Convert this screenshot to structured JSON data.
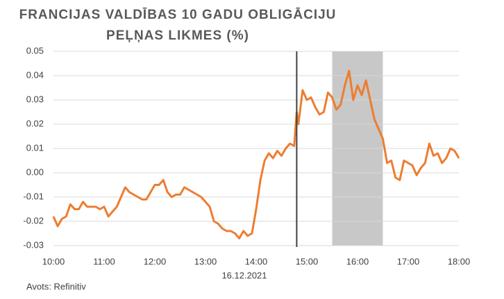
{
  "chart_data": {
    "type": "line",
    "title": [
      "FRANCIJAS VALDĪBAS 10 GADU OBLIGĀCIJU",
      "PEĻŅAS LIKMES (%)"
    ],
    "xlabel": "16.12.2021",
    "source": "Avots: Refinitiv",
    "color": "#ed7d31",
    "grid": true,
    "vline": "14:48",
    "vline_color": "#404040",
    "shade": [
      "15:30",
      "16:30"
    ],
    "shade_color": "#c8c8c8",
    "xlim": [
      "10:00",
      "18:00"
    ],
    "xticks": [
      "10:00",
      "11:00",
      "12:00",
      "13:00",
      "14:00",
      "15:00",
      "16:00",
      "17:00",
      "18:00"
    ],
    "ylim": [
      -0.03,
      0.05
    ],
    "yticks": [
      0.05,
      0.04,
      0.03,
      0.02,
      0.01,
      {
        "value": 0,
        "label": "0.00"
      },
      -0.01,
      -0.02,
      -0.03
    ],
    "x": [
      "10:00",
      "10:05",
      "10:10",
      "10:15",
      "10:20",
      "10:25",
      "10:30",
      "10:35",
      "10:40",
      "10:45",
      "10:50",
      "10:55",
      "11:00",
      "11:05",
      "11:10",
      "11:15",
      "11:20",
      "11:25",
      "11:30",
      "11:35",
      "11:40",
      "11:45",
      "11:50",
      "11:55",
      "12:00",
      "12:05",
      "12:10",
      "12:15",
      "12:20",
      "12:25",
      "12:30",
      "12:35",
      "12:40",
      "12:45",
      "12:50",
      "12:55",
      "13:00",
      "13:05",
      "13:10",
      "13:15",
      "13:20",
      "13:25",
      "13:30",
      "13:35",
      "13:40",
      "13:45",
      "13:50",
      "13:55",
      "14:00",
      "14:05",
      "14:10",
      "14:15",
      "14:20",
      "14:25",
      "14:30",
      "14:35",
      "14:40",
      "14:45",
      "14:48",
      "14:50",
      "14:55",
      "15:00",
      "15:05",
      "15:10",
      "15:15",
      "15:20",
      "15:25",
      "15:30",
      "15:35",
      "15:40",
      "15:45",
      "15:50",
      "15:55",
      "16:00",
      "16:05",
      "16:10",
      "16:15",
      "16:20",
      "16:25",
      "16:30",
      "16:35",
      "16:40",
      "16:45",
      "16:50",
      "16:55",
      "17:00",
      "17:05",
      "17:10",
      "17:15",
      "17:20",
      "17:25",
      "17:30",
      "17:35",
      "17:40",
      "17:45",
      "17:50",
      "17:55",
      "18:00"
    ],
    "values": [
      -0.018,
      -0.022,
      -0.019,
      -0.018,
      -0.013,
      -0.015,
      -0.015,
      -0.012,
      -0.014,
      -0.014,
      -0.014,
      -0.015,
      -0.014,
      -0.018,
      -0.016,
      -0.014,
      -0.01,
      -0.006,
      -0.008,
      -0.009,
      -0.01,
      -0.011,
      -0.011,
      -0.008,
      -0.005,
      -0.005,
      -0.003,
      -0.008,
      -0.01,
      -0.009,
      -0.009,
      -0.006,
      -0.007,
      -0.008,
      -0.009,
      -0.01,
      -0.012,
      -0.014,
      -0.02,
      -0.021,
      -0.023,
      -0.024,
      -0.024,
      -0.025,
      -0.027,
      -0.024,
      -0.026,
      -0.025,
      -0.015,
      -0.003,
      0.005,
      0.008,
      0.006,
      0.009,
      0.007,
      0.01,
      0.012,
      0.011,
      0.025,
      0.02,
      0.034,
      0.03,
      0.031,
      0.027,
      0.024,
      0.025,
      0.033,
      0.031,
      0.026,
      0.028,
      0.036,
      0.042,
      0.03,
      0.036,
      0.032,
      0.038,
      0.03,
      0.022,
      0.018,
      0.014,
      0.004,
      0.005,
      -0.002,
      -0.003,
      0.005,
      0.004,
      0.003,
      -0.001,
      0.002,
      0.004,
      0.012,
      0.007,
      0.008,
      0.004,
      0.006,
      0.01,
      0.009,
      0.006
    ]
  }
}
